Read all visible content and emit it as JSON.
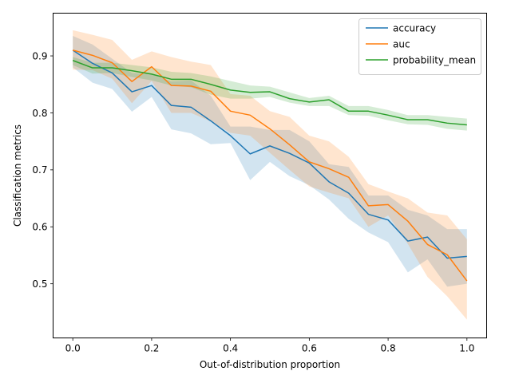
{
  "chart_data": {
    "type": "line",
    "xlabel": "Out-of-distribution proportion",
    "ylabel": "Classification metrics",
    "xlim": [
      -0.05,
      1.05
    ],
    "ylim": [
      0.405,
      0.975
    ],
    "xticks": [
      0.0,
      0.2,
      0.4,
      0.6,
      0.8,
      1.0
    ],
    "xtick_labels": [
      "0.0",
      "0.2",
      "0.4",
      "0.6",
      "0.8",
      "1.0"
    ],
    "yticks": [
      0.5,
      0.6,
      0.7,
      0.8,
      0.9
    ],
    "ytick_labels": [
      "0.5",
      "0.6",
      "0.7",
      "0.8",
      "0.9"
    ],
    "grid": false,
    "legend_position": "top-right",
    "x": [
      0.0,
      0.05,
      0.1,
      0.15,
      0.2,
      0.25,
      0.3,
      0.35,
      0.4,
      0.45,
      0.5,
      0.55,
      0.6,
      0.65,
      0.7,
      0.75,
      0.8,
      0.85,
      0.9,
      0.95,
      1.0
    ],
    "series": [
      {
        "name": "accuracy",
        "color": "#1f77b4",
        "values": [
          0.91,
          0.887,
          0.87,
          0.837,
          0.848,
          0.813,
          0.81,
          0.786,
          0.76,
          0.728,
          0.742,
          0.729,
          0.712,
          0.679,
          0.659,
          0.622,
          0.612,
          0.575,
          0.582,
          0.545,
          0.548
        ],
        "lower": [
          0.88,
          0.853,
          0.842,
          0.802,
          0.828,
          0.771,
          0.764,
          0.745,
          0.747,
          0.682,
          0.714,
          0.689,
          0.673,
          0.648,
          0.614,
          0.59,
          0.573,
          0.52,
          0.543,
          0.495,
          0.5
        ],
        "upper": [
          0.935,
          0.92,
          0.895,
          0.87,
          0.868,
          0.855,
          0.857,
          0.83,
          0.776,
          0.776,
          0.77,
          0.77,
          0.75,
          0.71,
          0.705,
          0.655,
          0.655,
          0.63,
          0.62,
          0.596,
          0.596
        ]
      },
      {
        "name": "auc",
        "color": "#ff7f0e",
        "values": [
          0.91,
          0.901,
          0.888,
          0.855,
          0.881,
          0.848,
          0.847,
          0.838,
          0.803,
          0.796,
          0.772,
          0.744,
          0.714,
          0.702,
          0.687,
          0.637,
          0.639,
          0.61,
          0.569,
          0.551,
          0.505
        ],
        "lower": [
          0.876,
          0.875,
          0.86,
          0.817,
          0.856,
          0.8,
          0.8,
          0.785,
          0.765,
          0.76,
          0.73,
          0.7,
          0.671,
          0.66,
          0.65,
          0.6,
          0.62,
          0.57,
          0.512,
          0.478,
          0.437
        ],
        "upper": [
          0.945,
          0.937,
          0.928,
          0.893,
          0.908,
          0.898,
          0.89,
          0.884,
          0.833,
          0.83,
          0.803,
          0.793,
          0.76,
          0.75,
          0.723,
          0.675,
          0.662,
          0.65,
          0.625,
          0.62,
          0.578
        ]
      },
      {
        "name": "probability_mean",
        "color": "#2ca02c",
        "values": [
          0.892,
          0.879,
          0.879,
          0.874,
          0.868,
          0.859,
          0.859,
          0.85,
          0.84,
          0.836,
          0.837,
          0.825,
          0.819,
          0.823,
          0.803,
          0.803,
          0.796,
          0.788,
          0.788,
          0.782,
          0.779
        ],
        "lower": [
          0.884,
          0.869,
          0.87,
          0.863,
          0.857,
          0.848,
          0.845,
          0.832,
          0.825,
          0.825,
          0.828,
          0.818,
          0.812,
          0.812,
          0.796,
          0.795,
          0.787,
          0.78,
          0.779,
          0.772,
          0.769
        ],
        "upper": [
          0.898,
          0.888,
          0.888,
          0.884,
          0.88,
          0.872,
          0.87,
          0.864,
          0.856,
          0.848,
          0.846,
          0.836,
          0.826,
          0.83,
          0.812,
          0.812,
          0.805,
          0.796,
          0.796,
          0.793,
          0.79
        ]
      }
    ]
  }
}
